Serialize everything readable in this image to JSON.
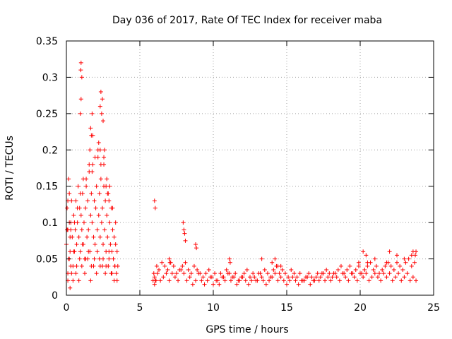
{
  "chart_data": {
    "type": "scatter",
    "title": "Day 036 of 2017, Rate Of TEC Index for receiver maba",
    "xlabel": "GPS time / hours",
    "ylabel": "ROTI / TECUs",
    "xlim": [
      0,
      25
    ],
    "ylim": [
      0,
      0.35
    ],
    "x_ticks": [
      0,
      5,
      10,
      15,
      20,
      25
    ],
    "x_tick_labels": [
      "0",
      "5",
      "10",
      "15",
      "20",
      "25"
    ],
    "y_ticks": [
      0,
      0.05,
      0.1,
      0.15,
      0.2,
      0.25,
      0.3,
      0.35
    ],
    "y_tick_labels": [
      "0",
      "0.05",
      "0.1",
      "0.15",
      "0.2",
      "0.25",
      "0.3",
      "0.35"
    ],
    "grid": true,
    "marker": "+",
    "color": "#ff0000",
    "series": [
      {
        "x": [
          0.0,
          0.05,
          0.1,
          0.15,
          0.2,
          0.25,
          0.3,
          0.35,
          0.4,
          0.45,
          0.5,
          0.55,
          0.6,
          0.65,
          0.7,
          0.75,
          0.8,
          0.85,
          0.9,
          0.95,
          1.0,
          1.05,
          1.1,
          1.15,
          1.2,
          1.25,
          1.3,
          1.35,
          1.4,
          1.45,
          1.5,
          1.55,
          1.6,
          1.65,
          1.7,
          1.75,
          1.8,
          1.85,
          1.9,
          1.95,
          2.0,
          2.05,
          2.1,
          2.15,
          2.2,
          2.25,
          2.3,
          2.35,
          2.4,
          2.45,
          2.5,
          2.55,
          2.6,
          2.65,
          2.7,
          2.75,
          2.8,
          2.85,
          2.9,
          2.95,
          3.0,
          3.05,
          3.1,
          3.15,
          3.2,
          3.25,
          3.3,
          3.35,
          3.4,
          3.45,
          3.5,
          0.1,
          0.2,
          0.3,
          0.5,
          0.7,
          0.9,
          1.1,
          1.3,
          1.5,
          1.7,
          1.9,
          2.1,
          2.3,
          2.5,
          2.7,
          2.9,
          3.1,
          3.3,
          0.15,
          0.35,
          0.55,
          0.75,
          0.95,
          1.15,
          1.35,
          1.55,
          1.75,
          1.95,
          2.15,
          2.35,
          2.55,
          2.75,
          2.95,
          3.15,
          3.35,
          0.05,
          0.25,
          0.45,
          0.65,
          0.85,
          1.05,
          1.25,
          1.45,
          1.65,
          1.85,
          2.05,
          2.25,
          2.45,
          2.65,
          2.85,
          3.05,
          3.25,
          3.45,
          0.1,
          0.2,
          0.95,
          1.0,
          1.05,
          1.0,
          0.98,
          1.6,
          1.65,
          1.7,
          2.3,
          2.35,
          2.4,
          2.45,
          2.5,
          2.6,
          1.75,
          1.8,
          2.2,
          2.3,
          2.55,
          2.7,
          2.8,
          2.9,
          0.3,
          0.1,
          0.25,
          5.9,
          6.0,
          6.0,
          6.1,
          6.2,
          6.4,
          6.6,
          6.8,
          7.0,
          7.2,
          7.4,
          7.6,
          7.8,
          8.0,
          8.2,
          8.4,
          8.6,
          8.8,
          9.0,
          9.2,
          9.4,
          9.6,
          9.8,
          10.0,
          10.2,
          10.4,
          10.6,
          10.8,
          11.0,
          11.2,
          11.4,
          11.6,
          11.8,
          12.0,
          12.2,
          12.4,
          12.6,
          12.8,
          13.0,
          13.2,
          13.4,
          13.6,
          13.8,
          14.0,
          14.2,
          14.4,
          14.6,
          14.8,
          15.0,
          15.2,
          15.4,
          15.6,
          15.8,
          16.0,
          16.2,
          16.4,
          16.6,
          16.8,
          17.0,
          17.2,
          17.4,
          17.6,
          17.8,
          18.0,
          18.2,
          18.4,
          18.6,
          18.8,
          19.0,
          19.2,
          19.4,
          19.6,
          19.8,
          20.0,
          20.2,
          20.4,
          20.6,
          20.8,
          21.0,
          21.2,
          21.4,
          21.6,
          21.8,
          22.0,
          22.2,
          22.4,
          22.6,
          22.8,
          23.0,
          23.2,
          23.4,
          23.6,
          23.8,
          5.95,
          6.05,
          6.15,
          6.3,
          6.5,
          6.7,
          6.9,
          7.1,
          7.3,
          7.5,
          7.7,
          7.9,
          8.1,
          8.3,
          8.5,
          8.7,
          8.9,
          9.1,
          9.3,
          9.5,
          9.7,
          9.9,
          10.1,
          10.3,
          10.5,
          10.7,
          10.9,
          11.1,
          11.3,
          11.5,
          11.7,
          11.9,
          12.1,
          12.3,
          12.5,
          12.7,
          12.9,
          13.1,
          13.3,
          13.5,
          13.7,
          13.9,
          14.1,
          14.3,
          14.5,
          14.7,
          14.9,
          15.1,
          15.3,
          15.5,
          15.7,
          15.9,
          16.1,
          16.3,
          16.5,
          16.7,
          16.9,
          17.1,
          17.3,
          17.5,
          17.7,
          17.9,
          18.1,
          18.3,
          18.5,
          18.7,
          18.9,
          19.1,
          19.3,
          19.5,
          19.7,
          19.9,
          20.1,
          20.3,
          20.5,
          20.7,
          20.9,
          21.1,
          21.3,
          21.5,
          21.7,
          21.9,
          22.1,
          22.3,
          22.5,
          22.7,
          22.9,
          23.1,
          23.3,
          23.5,
          23.7,
          6.0,
          6.05,
          7.0,
          7.05,
          7.95,
          8.0,
          8.05,
          8.1,
          8.8,
          8.85,
          11.1,
          11.15,
          13.3,
          14.0,
          14.2,
          14.4,
          14.6,
          19.9,
          20.2,
          20.4,
          20.5,
          21.0,
          21.8,
          22.0,
          22.5,
          23.0,
          23.5,
          23.6,
          23.8,
          23.75
        ],
        "y": [
          0.07,
          0.12,
          0.09,
          0.05,
          0.14,
          0.06,
          0.1,
          0.03,
          0.08,
          0.04,
          0.11,
          0.06,
          0.09,
          0.13,
          0.07,
          0.1,
          0.15,
          0.08,
          0.12,
          0.06,
          0.11,
          0.09,
          0.14,
          0.07,
          0.1,
          0.05,
          0.12,
          0.16,
          0.08,
          0.13,
          0.09,
          0.17,
          0.06,
          0.11,
          0.14,
          0.1,
          0.18,
          0.08,
          0.13,
          0.07,
          0.12,
          0.15,
          0.09,
          0.19,
          0.11,
          0.14,
          0.08,
          0.16,
          0.1,
          0.12,
          0.07,
          0.15,
          0.09,
          0.13,
          0.06,
          0.11,
          0.08,
          0.14,
          0.05,
          0.1,
          0.07,
          0.12,
          0.06,
          0.09,
          0.05,
          0.08,
          0.04,
          0.07,
          0.03,
          0.06,
          0.04,
          0.03,
          0.05,
          0.04,
          0.06,
          0.04,
          0.05,
          0.07,
          0.05,
          0.06,
          0.04,
          0.05,
          0.06,
          0.04,
          0.05,
          0.04,
          0.06,
          0.03,
          0.04,
          0.16,
          0.13,
          0.1,
          0.12,
          0.14,
          0.16,
          0.15,
          0.18,
          0.17,
          0.19,
          0.2,
          0.18,
          0.19,
          0.16,
          0.15,
          0.12,
          0.1,
          0.09,
          0.08,
          0.02,
          0.03,
          0.02,
          0.04,
          0.03,
          0.05,
          0.02,
          0.04,
          0.03,
          0.05,
          0.04,
          0.03,
          0.04,
          0.03,
          0.02,
          0.02,
          0.13,
          0.1,
          0.25,
          0.27,
          0.3,
          0.32,
          0.31,
          0.2,
          0.23,
          0.22,
          0.26,
          0.28,
          0.25,
          0.27,
          0.24,
          0.2,
          0.25,
          0.22,
          0.21,
          0.2,
          0.18,
          0.15,
          0.14,
          0.13,
          0.09,
          0.02,
          0.01,
          0.02,
          0.015,
          0.025,
          0.02,
          0.03,
          0.02,
          0.025,
          0.03,
          0.02,
          0.03,
          0.025,
          0.02,
          0.035,
          0.03,
          0.02,
          0.025,
          0.015,
          0.02,
          0.03,
          0.02,
          0.015,
          0.02,
          0.025,
          0.015,
          0.02,
          0.015,
          0.025,
          0.02,
          0.03,
          0.02,
          0.025,
          0.015,
          0.02,
          0.025,
          0.02,
          0.015,
          0.02,
          0.025,
          0.02,
          0.03,
          0.02,
          0.015,
          0.02,
          0.025,
          0.03,
          0.02,
          0.025,
          0.02,
          0.015,
          0.02,
          0.025,
          0.02,
          0.015,
          0.02,
          0.02,
          0.025,
          0.015,
          0.02,
          0.025,
          0.02,
          0.03,
          0.02,
          0.025,
          0.02,
          0.03,
          0.025,
          0.02,
          0.03,
          0.025,
          0.02,
          0.03,
          0.025,
          0.02,
          0.03,
          0.025,
          0.03,
          0.02,
          0.025,
          0.03,
          0.025,
          0.02,
          0.03,
          0.025,
          0.03,
          0.02,
          0.025,
          0.03,
          0.02,
          0.025,
          0.03,
          0.02,
          0.025,
          0.02,
          0.03,
          0.02,
          0.04,
          0.035,
          0.045,
          0.04,
          0.035,
          0.045,
          0.04,
          0.03,
          0.035,
          0.04,
          0.045,
          0.035,
          0.03,
          0.04,
          0.035,
          0.03,
          0.025,
          0.03,
          0.035,
          0.025,
          0.03,
          0.02,
          0.03,
          0.025,
          0.035,
          0.03,
          0.025,
          0.03,
          0.02,
          0.025,
          0.03,
          0.035,
          0.025,
          0.03,
          0.02,
          0.03,
          0.025,
          0.035,
          0.03,
          0.025,
          0.035,
          0.04,
          0.03,
          0.035,
          0.03,
          0.025,
          0.035,
          0.03,
          0.025,
          0.03,
          0.02,
          0.025,
          0.03,
          0.025,
          0.02,
          0.03,
          0.025,
          0.03,
          0.035,
          0.03,
          0.025,
          0.03,
          0.035,
          0.04,
          0.03,
          0.035,
          0.04,
          0.03,
          0.035,
          0.04,
          0.03,
          0.035,
          0.04,
          0.045,
          0.035,
          0.04,
          0.03,
          0.035,
          0.04,
          0.045,
          0.04,
          0.035,
          0.045,
          0.04,
          0.035,
          0.045,
          0.05,
          0.04,
          0.045,
          0.13,
          0.12,
          0.05,
          0.045,
          0.1,
          0.09,
          0.085,
          0.075,
          0.07,
          0.065,
          0.05,
          0.045,
          0.05,
          0.045,
          0.05,
          0.04,
          0.04,
          0.045,
          0.06,
          0.055,
          0.045,
          0.05,
          0.045,
          0.06,
          0.055,
          0.05,
          0.055,
          0.06,
          0.06,
          0.055
        ]
      }
    ]
  }
}
